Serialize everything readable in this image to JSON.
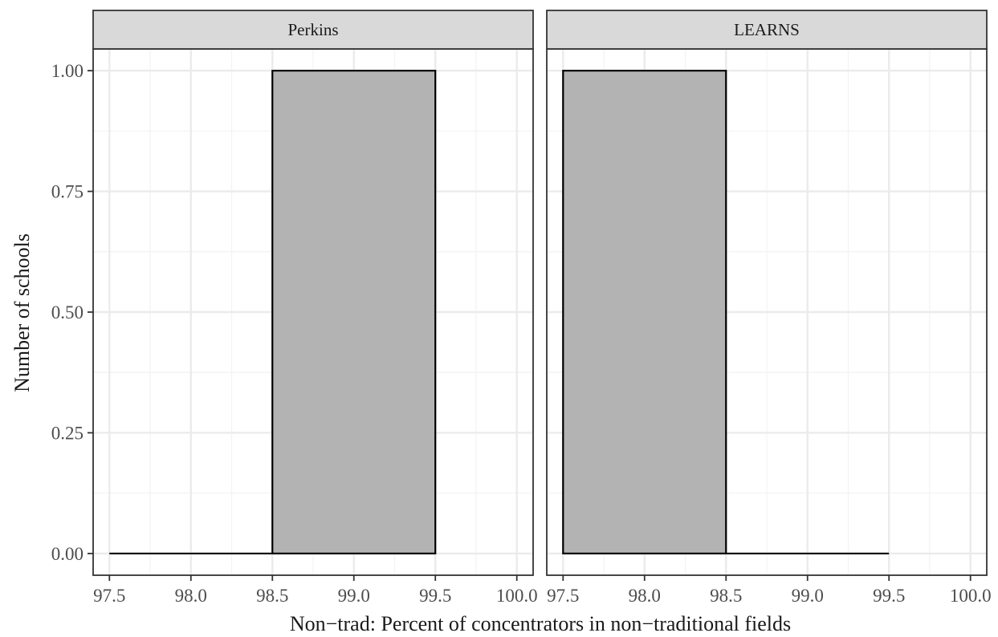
{
  "chart_data": {
    "type": "bar",
    "xlabel": "Non−trad: Percent of concentrators in non−traditional fields",
    "ylabel": "Number of schools",
    "xlim": [
      97.4,
      100.1
    ],
    "ylim": [
      -0.045,
      1.045
    ],
    "x_ticks": [
      97.5,
      98.0,
      98.5,
      99.0,
      99.5,
      100.0
    ],
    "x_tick_labels": [
      "97.5",
      "98.0",
      "98.5",
      "99.0",
      "99.5",
      "100.0"
    ],
    "y_ticks": [
      0,
      0.25,
      0.5,
      0.75,
      1.0
    ],
    "y_tick_labels": [
      "0.00",
      "0.25",
      "0.50",
      "0.75",
      "1.00"
    ],
    "grid": true,
    "bar_fill": "#b3b3b3",
    "bar_outline": "#000000",
    "panels": [
      {
        "name": "Perkins",
        "bins": [
          {
            "x0": 97.5,
            "x1": 98.5,
            "count": 0
          },
          {
            "x0": 98.5,
            "x1": 99.5,
            "count": 1
          }
        ]
      },
      {
        "name": "LEARNS",
        "bins": [
          {
            "x0": 97.5,
            "x1": 98.5,
            "count": 1
          },
          {
            "x0": 98.5,
            "x1": 99.5,
            "count": 0
          }
        ]
      }
    ]
  }
}
